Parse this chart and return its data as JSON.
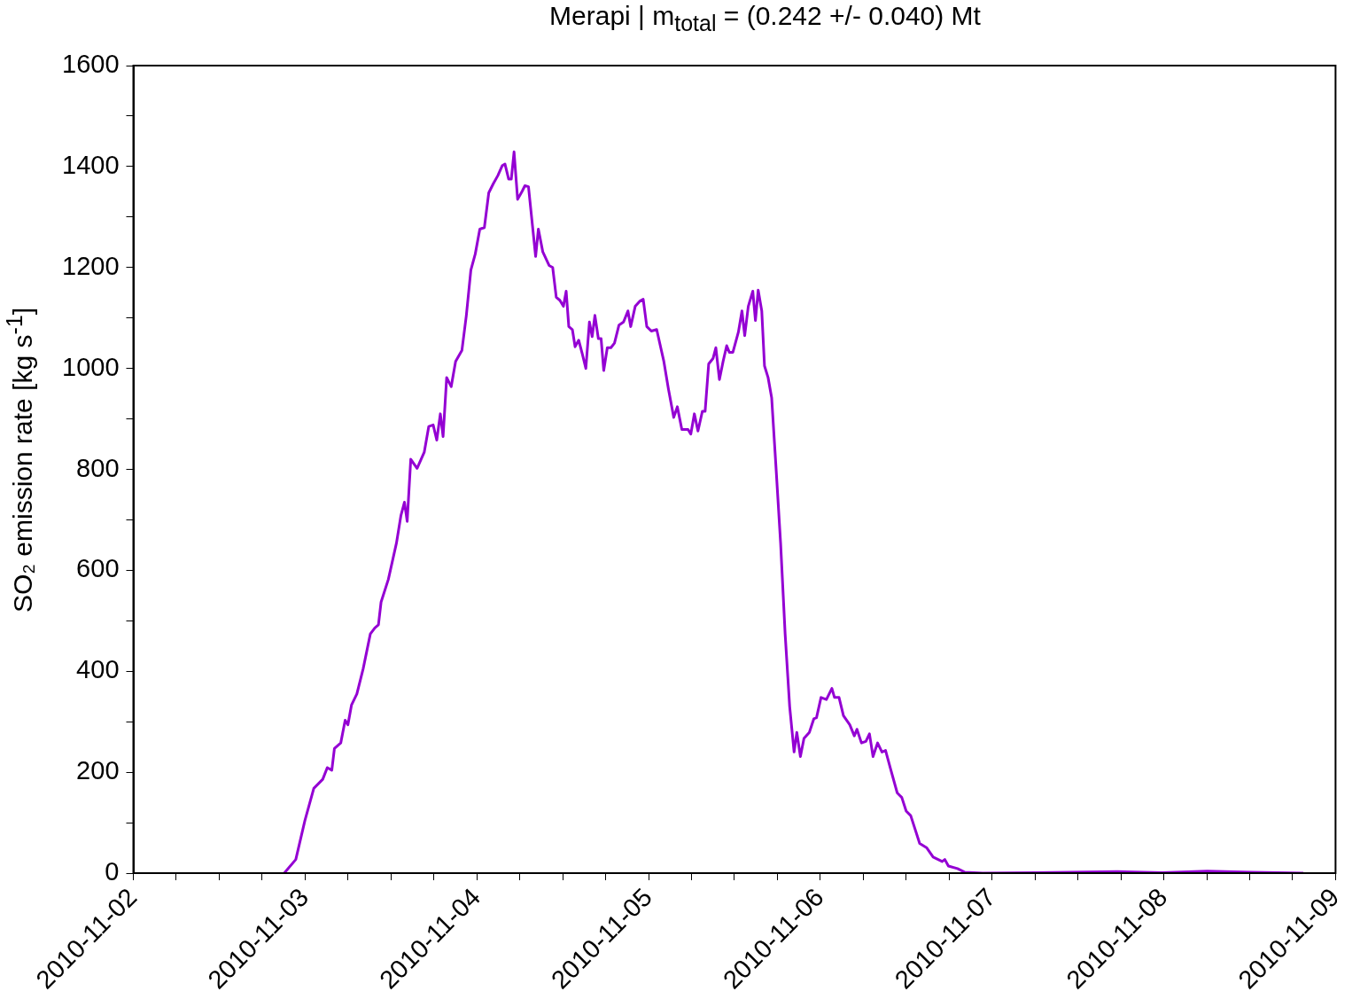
{
  "chart_data": {
    "type": "line",
    "title": "Merapi | m$_{total}$ = (0.242 +/- 0.040) Mt",
    "ylabel": "SO₂ emission rate [kg s$^{-1}$]",
    "x": [
      "2010-11-02T21:05",
      "2010-11-02T22:42",
      "2010-11-02T23:58",
      "2010-11-03T01:13",
      "2010-11-03T02:28",
      "2010-11-03T03:06",
      "2010-11-03T03:44",
      "2010-11-03T04:06",
      "2010-11-03T04:59",
      "2010-11-03T05:36",
      "2010-11-03T05:59",
      "2010-11-03T06:29",
      "2010-11-03T07:14",
      "2010-11-03T08:07",
      "2010-11-03T09:07",
      "2010-11-03T09:45",
      "2010-11-03T10:15",
      "2010-11-03T10:37",
      "2010-11-03T11:38",
      "2010-11-03T12:46",
      "2010-11-03T13:23",
      "2010-11-03T13:53",
      "2010-11-03T14:16",
      "2010-11-03T14:46",
      "2010-11-03T15:39",
      "2010-11-03T16:39",
      "2010-11-03T17:17",
      "2010-11-03T17:54",
      "2010-11-03T18:24",
      "2010-11-03T18:54",
      "2010-11-03T19:17",
      "2010-11-03T19:47",
      "2010-11-03T20:25",
      "2010-11-03T21:02",
      "2010-11-03T21:55",
      "2010-11-03T22:32",
      "2010-11-03T23:10",
      "2010-11-03T23:47",
      "2010-11-04T00:25",
      "2010-11-04T01:03",
      "2010-11-04T01:40",
      "2010-11-04T02:18",
      "2010-11-04T02:56",
      "2010-11-04T03:34",
      "2010-11-04T03:56",
      "2010-11-04T04:27",
      "2010-11-04T04:49",
      "2010-11-04T05:12",
      "2010-11-04T05:42",
      "2010-11-04T06:20",
      "2010-11-04T06:43",
      "2010-11-04T07:13",
      "2010-11-04T08:13",
      "2010-11-04T08:36",
      "2010-11-04T09:13",
      "2010-11-04T10:06",
      "2010-11-04T10:36",
      "2010-11-04T11:06",
      "2010-11-04T11:36",
      "2010-11-04T12:06",
      "2010-11-04T12:29",
      "2010-11-04T12:51",
      "2010-11-04T13:21",
      "2010-11-04T13:44",
      "2010-11-04T14:14",
      "2010-11-04T14:44",
      "2010-11-04T15:14",
      "2010-11-04T15:44",
      "2010-11-04T16:07",
      "2010-11-04T16:30",
      "2010-11-04T16:59",
      "2010-11-04T17:22",
      "2010-11-04T17:44",
      "2010-11-04T18:14",
      "2010-11-04T18:44",
      "2010-11-04T19:14",
      "2010-11-04T19:52",
      "2010-11-04T20:30",
      "2010-11-04T21:07",
      "2010-11-04T21:30",
      "2010-11-04T22:08",
      "2010-11-04T22:45",
      "2010-11-04T23:15",
      "2010-11-04T23:45",
      "2010-11-05T00:23",
      "2010-11-05T01:08",
      "2010-11-05T02:08",
      "2010-11-05T02:46",
      "2010-11-05T03:31",
      "2010-11-05T04:01",
      "2010-11-05T04:39",
      "2010-11-05T05:31",
      "2010-11-05T05:54",
      "2010-11-05T06:24",
      "2010-11-05T06:54",
      "2010-11-05T07:31",
      "2010-11-05T07:54",
      "2010-11-05T08:24",
      "2010-11-05T09:01",
      "2010-11-05T09:24",
      "2010-11-05T09:54",
      "2010-11-05T10:25",
      "2010-11-05T10:55",
      "2010-11-05T11:17",
      "2010-11-05T11:47",
      "2010-11-05T12:33",
      "2010-11-05T13:03",
      "2010-11-05T13:26",
      "2010-11-05T13:56",
      "2010-11-05T14:34",
      "2010-11-05T14:56",
      "2010-11-05T15:19",
      "2010-11-05T15:49",
      "2010-11-05T16:12",
      "2010-11-05T16:42",
      "2010-11-05T17:12",
      "2010-11-05T17:50",
      "2010-11-05T18:27",
      "2010-11-05T19:05",
      "2010-11-05T19:43",
      "2010-11-05T20:20",
      "2010-11-05T20:43",
      "2010-11-05T21:13",
      "2010-11-05T21:43",
      "2010-11-05T22:28",
      "2010-11-05T23:06",
      "2010-11-05T23:28",
      "2010-11-06T00:06",
      "2010-11-06T00:51",
      "2010-11-06T01:37",
      "2010-11-06T01:59",
      "2010-11-06T02:37",
      "2010-11-06T03:14",
      "2010-11-06T04:07",
      "2010-11-06T04:45",
      "2010-11-06T05:07",
      "2010-11-06T05:45",
      "2010-11-06T06:22",
      "2010-11-06T06:52",
      "2010-11-06T07:22",
      "2010-11-06T08:00",
      "2010-11-06T08:37",
      "2010-11-06T09:07",
      "2010-11-06T09:52",
      "2010-11-06T10:45",
      "2010-11-06T11:23",
      "2010-11-06T12:00",
      "2010-11-06T12:38",
      "2010-11-06T13:53",
      "2010-11-06T14:53",
      "2010-11-06T15:46",
      "2010-11-06T17:02",
      "2010-11-06T17:24",
      "2010-11-06T17:54",
      "2010-11-06T19:10",
      "2010-11-06T20:10",
      "2010-11-06T22:41",
      "2010-11-07T06:12",
      "2010-11-07T17:30",
      "2010-11-07T23:47",
      "2010-11-08T06:04",
      "2010-11-08T12:20",
      "2010-11-08T19:30"
    ],
    "series": [
      {
        "color": "#9400d3",
        "values": [
          0,
          27,
          104,
          168,
          186,
          209,
          204,
          247,
          258,
          303,
          294,
          333,
          355,
          405,
          474,
          486,
          492,
          537,
          582,
          654,
          708,
          735,
          697,
          820,
          802,
          834,
          885,
          888,
          858,
          910,
          865,
          982,
          964,
          1014,
          1036,
          1105,
          1195,
          1227,
          1276,
          1279,
          1348,
          1366,
          1382,
          1402,
          1405,
          1375,
          1375,
          1429,
          1335,
          1351,
          1362,
          1360,
          1222,
          1276,
          1231,
          1204,
          1200,
          1141,
          1135,
          1123,
          1153,
          1083,
          1077,
          1043,
          1056,
          1029,
          1000,
          1092,
          1063,
          1105,
          1059,
          1059,
          996,
          1041,
          1041,
          1050,
          1086,
          1092,
          1114,
          1083,
          1123,
          1133,
          1137,
          1083,
          1074,
          1077,
          1014,
          960,
          903,
          924,
          879,
          879,
          870,
          910,
          876,
          915,
          915,
          1009,
          1020,
          1041,
          978,
          1014,
          1045,
          1032,
          1032,
          1072,
          1114,
          1065,
          1123,
          1153,
          1095,
          1155,
          1114,
          1005,
          982,
          942,
          798,
          654,
          474,
          330,
          240,
          279,
          231,
          267,
          279,
          306,
          308,
          348,
          344,
          366,
          348,
          348,
          312,
          294,
          272,
          285,
          258,
          261,
          276,
          231,
          258,
          240,
          243,
          204,
          159,
          150,
          123,
          114,
          59,
          50,
          32,
          23,
          27,
          14,
          9,
          2,
          0,
          1,
          3,
          1,
          4,
          2,
          0
        ]
      }
    ],
    "xlim": [
      "2010-11-02",
      "2010-11-09"
    ],
    "xticks": [
      {
        "value": "2010-11-02",
        "label": "2010-11-02"
      },
      {
        "value": "2010-11-02T06:00",
        "label": null
      },
      {
        "value": "2010-11-02T12:00",
        "label": null
      },
      {
        "value": "2010-11-02T18:00",
        "label": null
      },
      {
        "value": "2010-11-03",
        "label": "2010-11-03"
      },
      {
        "value": "2010-11-03T06:00",
        "label": null
      },
      {
        "value": "2010-11-03T12:00",
        "label": null
      },
      {
        "value": "2010-11-03T18:00",
        "label": null
      },
      {
        "value": "2010-11-04",
        "label": "2010-11-04"
      },
      {
        "value": "2010-11-04T06:00",
        "label": null
      },
      {
        "value": "2010-11-04T12:00",
        "label": null
      },
      {
        "value": "2010-11-04T18:00",
        "label": null
      },
      {
        "value": "2010-11-05",
        "label": "2010-11-05"
      },
      {
        "value": "2010-11-05T06:00",
        "label": null
      },
      {
        "value": "2010-11-05T12:00",
        "label": null
      },
      {
        "value": "2010-11-05T18:00",
        "label": null
      },
      {
        "value": "2010-11-06",
        "label": "2010-11-06"
      },
      {
        "value": "2010-11-06T06:00",
        "label": null
      },
      {
        "value": "2010-11-06T12:00",
        "label": null
      },
      {
        "value": "2010-11-06T18:00",
        "label": null
      },
      {
        "value": "2010-11-07",
        "label": "2010-11-07"
      },
      {
        "value": "2010-11-07T06:00",
        "label": null
      },
      {
        "value": "2010-11-07T12:00",
        "label": null
      },
      {
        "value": "2010-11-07T18:00",
        "label": null
      },
      {
        "value": "2010-11-08",
        "label": "2010-11-08"
      },
      {
        "value": "2010-11-08T06:00",
        "label": null
      },
      {
        "value": "2010-11-08T12:00",
        "label": null
      },
      {
        "value": "2010-11-08T18:00",
        "label": null
      },
      {
        "value": "2010-11-09",
        "label": "2010-11-09"
      }
    ],
    "ylim": [
      0,
      1600
    ],
    "yticks": [
      0,
      {
        "value": 100,
        "label": null
      },
      200,
      {
        "value": 300,
        "label": null
      },
      400,
      {
        "value": 500,
        "label": null
      },
      600,
      {
        "value": 700,
        "label": null
      },
      800,
      {
        "value": 900,
        "label": null
      },
      1000,
      {
        "value": 1100,
        "label": null
      },
      1200,
      {
        "value": 1300,
        "label": null
      },
      1400,
      {
        "value": 1500,
        "label": null
      },
      1600
    ],
    "grid": false,
    "legend": false,
    "marker": "none",
    "line_style": "solid"
  }
}
